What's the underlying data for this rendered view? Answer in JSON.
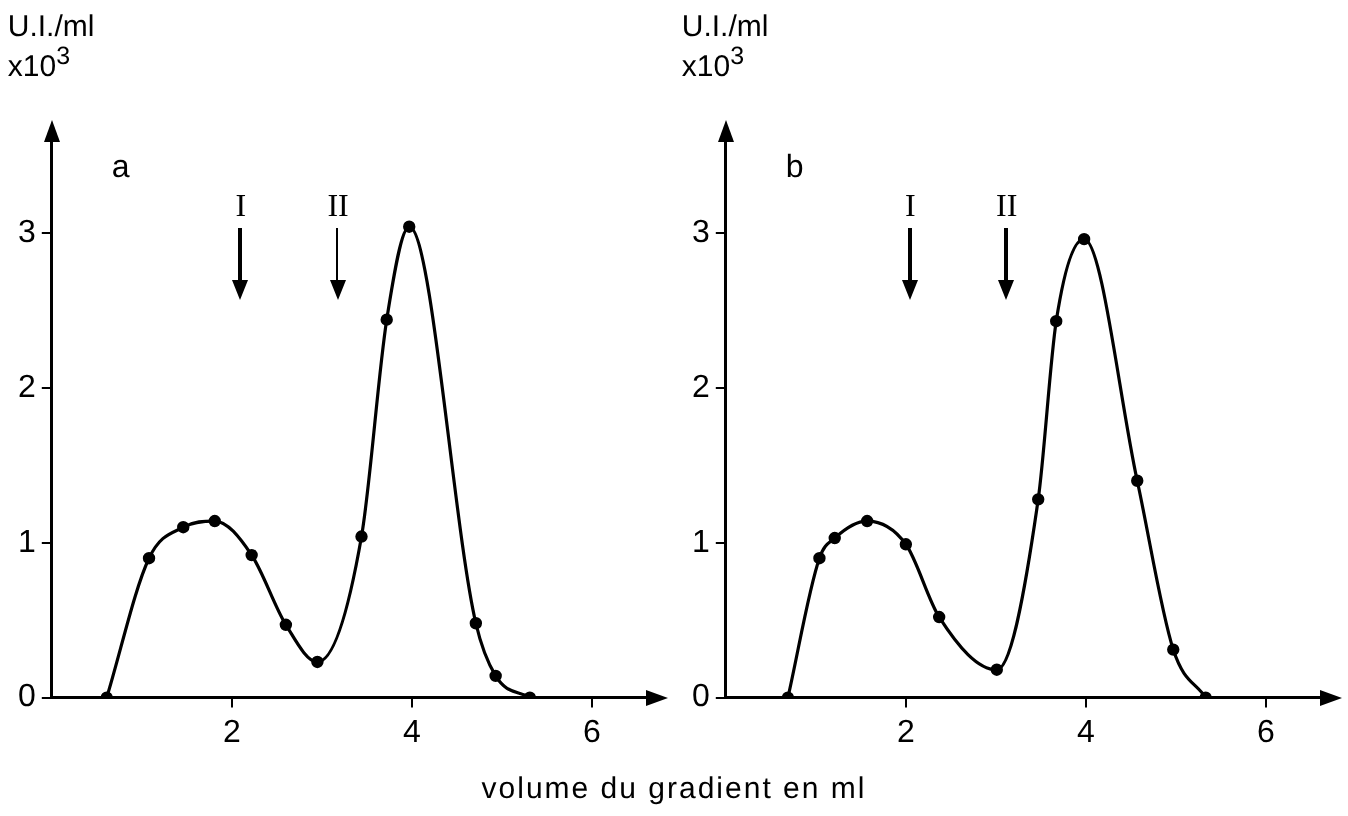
{
  "chart_data": [
    {
      "type": "line",
      "title": "a",
      "ylabel": "U.I./ml\nx10$^{3}$",
      "xlabel": "volume du gradient en ml",
      "color": "#000000",
      "marker": "circle",
      "grid": false,
      "xlim": [
        0,
        6.6
      ],
      "ylim": [
        0,
        3.6
      ],
      "xticks": [
        2,
        4,
        6
      ],
      "yticks": [
        0,
        1,
        2,
        3
      ],
      "x": [
        0.61,
        1.08,
        1.46,
        1.81,
        2.22,
        2.6,
        2.95,
        3.44,
        3.72,
        3.97,
        4.71,
        4.93,
        5.31
      ],
      "values": [
        0,
        0.9,
        1.1,
        1.14,
        0.92,
        0.47,
        0.23,
        1.04,
        2.44,
        3.04,
        0.48,
        0.14,
        0
      ],
      "ref_lines": [
        {
          "axis": "x",
          "value": 2.1,
          "label": "I"
        },
        {
          "axis": "x",
          "value": 3.18,
          "label": "II"
        }
      ]
    },
    {
      "type": "line",
      "title": "b",
      "ylabel": "U.I./ml\nx10$^{3}$",
      "color": "#000000",
      "marker": "circle",
      "grid": false,
      "xlim": [
        0,
        6.6
      ],
      "ylim": [
        0,
        3.6
      ],
      "xticks": [
        2,
        4,
        6
      ],
      "yticks": [
        0,
        1,
        2,
        3
      ],
      "x": [
        0.69,
        1.04,
        1.21,
        1.57,
        2.0,
        2.37,
        3.01,
        3.47,
        3.67,
        3.98,
        4.57,
        4.97,
        5.33
      ],
      "values": [
        0,
        0.9,
        1.03,
        1.14,
        0.99,
        0.52,
        0.18,
        1.28,
        2.43,
        2.96,
        1.4,
        0.31,
        0
      ],
      "ref_lines": [
        {
          "axis": "x",
          "value": 2.05,
          "label": "I"
        },
        {
          "axis": "x",
          "value": 3.12,
          "label": "II"
        }
      ]
    }
  ]
}
